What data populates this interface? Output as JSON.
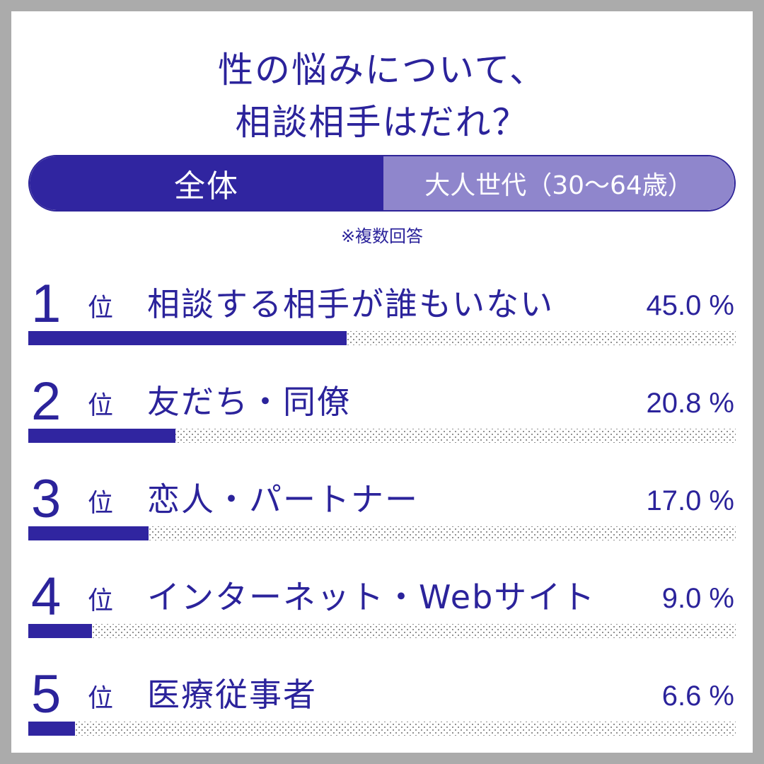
{
  "title": {
    "line1": "性の悩みについて、",
    "line2": "相談相手はだれ？"
  },
  "tabs": {
    "all": "全体",
    "adult": "大人世代（30〜64歳）"
  },
  "note": "※複数回答",
  "rank_suffix": "位",
  "colors": {
    "accent": "#3025a0",
    "accent_light": "#8f86cc",
    "text": "#2b239b",
    "frame": "#ababab"
  },
  "chart_data": {
    "type": "bar",
    "orientation": "horizontal",
    "unit": "%",
    "xlim": [
      0,
      100
    ],
    "categories": [
      "相談する相手が誰もいない",
      "友だち・同僚",
      "恋人・パートナー",
      "インターネット・Webサイト",
      "医療従事者"
    ],
    "ranks": [
      "1",
      "2",
      "3",
      "4",
      "5"
    ],
    "values": [
      45.0,
      20.8,
      17.0,
      9.0,
      6.6
    ],
    "value_labels": [
      "45.0 %",
      "20.8 %",
      "17.0 %",
      "9.0 %",
      "6.6 %"
    ]
  }
}
